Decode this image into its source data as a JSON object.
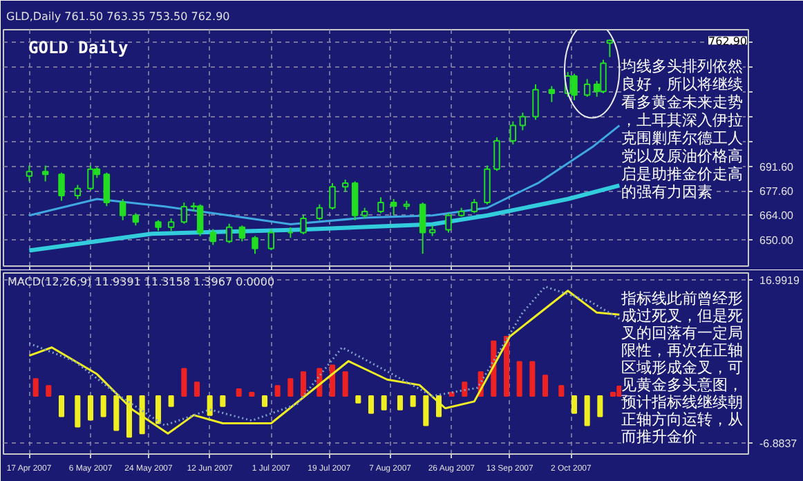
{
  "chart_data": [
    {
      "type": "candlestick",
      "title": "GOLD Daily",
      "subtitle": "GLD,Daily 761.50 763.35 753.50 762.90",
      "annotations": [
        "均线多头排列依然良好，所以将继续看多黄金未来走势，土耳其深入伊拉克围剿库尔德工人党以及原油价格高启是助推金价走高的强有力因素",
        "762.90"
      ],
      "color": "#22dd22",
      "x": [
        "2007-04-17",
        "2007-04-22",
        "2007-04-27",
        "2007-05-02",
        "2007-05-06",
        "2007-05-08",
        "2007-05-11",
        "2007-05-16",
        "2007-05-20",
        "2007-05-27",
        "2007-05-31",
        "2007-06-04",
        "2007-06-07",
        "2007-06-09",
        "2007-06-13",
        "2007-06-18",
        "2007-06-22",
        "2007-06-26",
        "2007-07-01",
        "2007-07-07",
        "2007-07-11",
        "2007-07-16",
        "2007-07-20",
        "2007-07-24",
        "2007-07-27",
        "2007-07-30",
        "2007-08-04",
        "2007-08-08",
        "2007-08-12",
        "2007-08-17",
        "2007-08-20",
        "2007-08-25",
        "2007-08-29",
        "2007-09-02",
        "2007-09-06",
        "2007-09-09",
        "2007-09-14",
        "2007-09-17",
        "2007-09-21",
        "2007-09-26",
        "2007-10-01",
        "2007-10-03",
        "2007-10-07",
        "2007-10-10",
        "2007-10-12",
        "2007-10-14"
      ],
      "ohlc": [
        [
          686,
          692,
          683,
          688.6
        ],
        [
          688.6,
          692,
          683,
          687
        ],
        [
          687,
          688,
          672,
          675
        ],
        [
          675,
          681,
          673,
          679
        ],
        [
          679,
          692,
          678,
          690
        ],
        [
          690,
          691,
          685,
          687
        ],
        [
          687,
          688,
          669,
          671
        ],
        [
          671,
          673,
          661,
          663.7
        ],
        [
          663.7,
          665,
          658,
          660
        ],
        [
          660,
          661,
          655,
          657
        ],
        [
          657,
          662,
          655,
          660
        ],
        [
          660,
          671,
          659,
          668.7
        ],
        [
          668.7,
          671,
          666,
          669
        ],
        [
          669,
          670,
          652,
          654
        ],
        [
          654,
          656,
          647,
          649
        ],
        [
          649,
          659,
          648,
          657
        ],
        [
          657,
          658,
          649,
          651
        ],
        [
          651,
          652,
          642,
          645
        ],
        [
          645,
          656,
          644,
          654
        ],
        [
          654,
          657,
          651,
          654
        ],
        [
          654,
          664,
          653,
          662
        ],
        [
          662,
          670,
          661,
          668
        ],
        [
          668,
          682,
          667,
          680
        ],
        [
          680,
          684,
          677,
          682
        ],
        [
          682,
          683,
          661,
          663.7
        ],
        [
          663.7,
          668,
          662,
          666
        ],
        [
          666,
          674,
          665,
          671
        ],
        [
          671,
          673,
          664,
          669
        ],
        [
          669,
          672,
          667,
          670
        ],
        [
          670,
          671,
          642,
          654
        ],
        [
          654,
          658,
          652,
          655.6
        ],
        [
          655.6,
          665,
          654,
          663.7
        ],
        [
          663.7,
          668,
          663,
          666
        ],
        [
          666,
          673,
          665,
          671
        ],
        [
          671,
          692,
          670,
          690
        ],
        [
          690,
          708,
          689,
          706
        ],
        [
          706,
          717,
          704,
          714.7
        ],
        [
          714.7,
          722,
          712,
          719.7
        ],
        [
          719.7,
          738,
          718,
          735
        ],
        [
          735,
          737,
          728,
          733
        ],
        [
          733,
          745,
          731,
          742.7
        ],
        [
          742.7,
          744,
          729,
          732
        ],
        [
          732,
          741,
          731,
          738
        ],
        [
          738,
          740,
          731,
          734
        ],
        [
          734,
          752,
          733,
          750
        ],
        [
          761.5,
          763.35,
          753.5,
          762.9
        ]
      ],
      "series": [
        {
          "type": "line",
          "color": "#33ccdd",
          "x": [
            "2007-04-17",
            "2007-05-25",
            "2007-07-09",
            "2007-08-20",
            "2007-09-06",
            "2007-10-01",
            "2007-10-17"
          ],
          "values": [
            643.8,
            653.3,
            655.6,
            658.7,
            663.7,
            673,
            680.7
          ]
        },
        {
          "type": "line",
          "color": "#3fa8e0",
          "x": [
            "2007-04-17",
            "2007-05-08",
            "2007-05-29",
            "2007-06-18",
            "2007-07-07",
            "2007-07-30",
            "2007-08-20",
            "2007-09-06",
            "2007-09-22",
            "2007-10-09",
            "2007-10-17"
          ],
          "values": [
            663.7,
            673,
            668.8,
            663.7,
            658.7,
            662.4,
            663.7,
            668,
            682.3,
            703,
            714.7
          ]
        }
      ],
      "xlim": [
        "2007-04-09",
        "2007-11-26"
      ],
      "ylim": [
        635,
        769
      ],
      "yticks": [
        {
          "value": 650,
          "label": "650.00"
        },
        {
          "value": 664,
          "label": "664.00"
        },
        {
          "value": 677.6,
          "label": "677.60"
        },
        {
          "value": 691.6,
          "label": "691.60"
        },
        {
          "value": 705.6,
          "label": null
        },
        {
          "value": 719.6,
          "label": null
        },
        {
          "value": 733.6,
          "label": null
        },
        {
          "value": 747.6,
          "label": null
        },
        {
          "value": 761.6,
          "label": null
        }
      ],
      "xticks": [
        {
          "value": "2007-04-17",
          "label": null
        },
        {
          "value": "2007-05-06",
          "label": null
        },
        {
          "value": "2007-05-24",
          "label": null
        },
        {
          "value": "2007-06-12",
          "label": null
        },
        {
          "value": "2007-07-01",
          "label": null
        },
        {
          "value": "2007-07-19",
          "label": null
        },
        {
          "value": "2007-08-07",
          "label": null
        },
        {
          "value": "2007-08-26",
          "label": null
        },
        {
          "value": "2007-09-13",
          "label": null
        },
        {
          "value": "2007-10-02",
          "label": null
        }
      ],
      "grid": true,
      "tick_labels": "y"
    },
    {
      "type": "bar",
      "title": "MACD(12,26,9) 11.9391 11.3158 1.3967 0.0000",
      "annotations": [
        "指标线此前曾经形成过死叉，但是死叉的回落有一定局限性，再次在正轴区域形成金叉，可见黄金多头意图，预计指标线继续朝正轴方向运转，从而推升金价"
      ],
      "series": [
        {
          "type": "bar",
          "x": [
            "2007-04-19",
            "2007-04-23",
            "2007-04-27",
            "2007-05-02",
            "2007-05-06",
            "2007-05-10",
            "2007-05-14",
            "2007-05-18",
            "2007-05-22",
            "2007-05-27",
            "2007-05-31",
            "2007-06-04",
            "2007-06-08",
            "2007-06-12",
            "2007-06-16",
            "2007-06-21",
            "2007-06-25",
            "2007-06-29",
            "2007-07-03",
            "2007-07-07",
            "2007-07-11",
            "2007-07-16",
            "2007-07-20",
            "2007-07-24",
            "2007-07-28",
            "2007-08-01",
            "2007-08-05",
            "2007-08-10",
            "2007-08-14",
            "2007-08-18",
            "2007-08-22",
            "2007-08-26",
            "2007-08-30",
            "2007-09-04",
            "2007-09-08",
            "2007-09-12",
            "2007-09-16",
            "2007-09-20",
            "2007-09-24",
            "2007-09-29",
            "2007-10-03",
            "2007-10-07",
            "2007-10-11",
            "2007-10-15",
            "2007-10-17"
          ],
          "values": [
            2.5,
            1.5,
            -3,
            -4.5,
            -3.5,
            -3,
            -5,
            -6,
            -5.5,
            -4,
            -1.5,
            4,
            2,
            -2.8,
            -1.5,
            1,
            0.5,
            -1.5,
            1.5,
            2.5,
            3.5,
            4,
            4.5,
            3.5,
            -1,
            -2.5,
            -2,
            -2,
            -1.5,
            -4.3,
            -3,
            0.5,
            2,
            3.5,
            8,
            8.7,
            5,
            5,
            3,
            1.5,
            -2.5,
            -4.3,
            -3,
            0.5,
            1.4
          ],
          "colors": [
            "#ee2222",
            "#ee2222",
            "#eeee22",
            "#eeee22",
            "#eeee22",
            "#eeee22",
            "#eeee22",
            "#eeee22",
            "#eeee22",
            "#eeee22",
            "#eeee22",
            "#ee2222",
            "#ee2222",
            "#eeee22",
            "#eeee22",
            "#ee2222",
            "#ee2222",
            "#eeee22",
            "#ee2222",
            "#ee2222",
            "#ee2222",
            "#ee2222",
            "#ee2222",
            "#ee2222",
            "#eeee22",
            "#eeee22",
            "#eeee22",
            "#eeee22",
            "#eeee22",
            "#eeee22",
            "#eeee22",
            "#ee2222",
            "#ee2222",
            "#ee2222",
            "#ee2222",
            "#ee2222",
            "#ee2222",
            "#ee2222",
            "#ee2222",
            "#ee2222",
            "#eeee22",
            "#eeee22",
            "#eeee22",
            "#ee2222",
            "#ee2222"
          ]
        },
        {
          "type": "line",
          "color": "#eeee22",
          "x": [
            "2007-04-17",
            "2007-04-24",
            "2007-05-08",
            "2007-05-19",
            "2007-05-30",
            "2007-06-07",
            "2007-06-16",
            "2007-07-01",
            "2007-07-25",
            "2007-08-06",
            "2007-08-16",
            "2007-08-24",
            "2007-09-02",
            "2007-09-13",
            "2007-10-01",
            "2007-10-10",
            "2007-10-17"
          ],
          "values": [
            5.9,
            7.1,
            3.2,
            -2,
            -5.5,
            -2.8,
            -4,
            -4,
            5.1,
            2.4,
            1.6,
            -1.8,
            -0.8,
            8.7,
            15.4,
            12.2,
            11.9
          ]
        },
        {
          "type": "line",
          "color": "#7fa0c8",
          "line_style": "dotted",
          "x": [
            "2007-04-17",
            "2007-05-01",
            "2007-05-15",
            "2007-05-29",
            "2007-06-12",
            "2007-06-25",
            "2007-07-09",
            "2007-07-23",
            "2007-08-06",
            "2007-08-20",
            "2007-09-03",
            "2007-09-17",
            "2007-09-24",
            "2007-10-08",
            "2007-10-17"
          ],
          "values": [
            7.7,
            5.1,
            0,
            -4.3,
            -2,
            -3.6,
            -1.2,
            7.1,
            3.6,
            0,
            1.2,
            12.2,
            16,
            13.8,
            11.3
          ]
        }
      ],
      "xlim": [
        "2007-04-09",
        "2007-11-26"
      ],
      "ylim": [
        -8.5,
        18
      ],
      "yticks": [
        {
          "value": -6.8837,
          "label": "-6.8837"
        },
        {
          "value": 16.9919,
          "label": "16.9919"
        }
      ],
      "xticks": [
        {
          "value": "2007-04-17",
          "label": "17 Apr 2007"
        },
        {
          "value": "2007-05-06",
          "label": "6 May 2007"
        },
        {
          "value": "2007-05-24",
          "label": "24 May 2007"
        },
        {
          "value": "2007-06-12",
          "label": "12 Jun 2007"
        },
        {
          "value": "2007-07-01",
          "label": "1 Jul 2007"
        },
        {
          "value": "2007-07-19",
          "label": "19 Jul 2007"
        },
        {
          "value": "2007-08-07",
          "label": "7 Aug 2007"
        },
        {
          "value": "2007-08-26",
          "label": "26 Aug 2007"
        },
        {
          "value": "2007-09-13",
          "label": "13 Sep 2007"
        },
        {
          "value": "2007-10-02",
          "label": "2 Oct 2007"
        }
      ],
      "grid": true
    }
  ]
}
